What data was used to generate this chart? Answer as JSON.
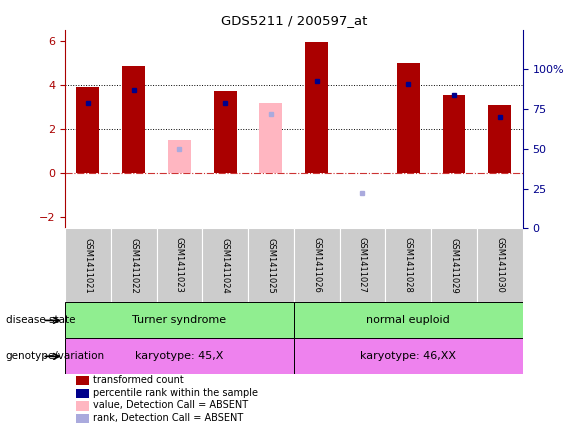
{
  "title": "GDS5211 / 200597_at",
  "samples": [
    "GSM1411021",
    "GSM1411022",
    "GSM1411023",
    "GSM1411024",
    "GSM1411025",
    "GSM1411026",
    "GSM1411027",
    "GSM1411028",
    "GSM1411029",
    "GSM1411030"
  ],
  "transformed_count": [
    3.9,
    4.85,
    null,
    3.7,
    null,
    5.95,
    null,
    5.0,
    3.55,
    3.1
  ],
  "transformed_count_absent": [
    null,
    null,
    1.5,
    null,
    3.2,
    null,
    null,
    null,
    null,
    null
  ],
  "percentile_rank": [
    79,
    87,
    null,
    79,
    null,
    93,
    null,
    91,
    84,
    70
  ],
  "percentile_rank_absent": [
    null,
    null,
    50,
    null,
    72,
    null,
    22,
    null,
    null,
    null
  ],
  "ylim_left": [
    -2.5,
    6.5
  ],
  "ylim_right": [
    0,
    125
  ],
  "yticks_left": [
    -2,
    0,
    2,
    4,
    6
  ],
  "yticks_right": [
    0,
    25,
    50,
    75,
    100
  ],
  "ytick_labels_right": [
    "0",
    "25",
    "50",
    "75",
    "100%"
  ],
  "bar_color_present": "#aa0000",
  "bar_color_absent": "#ffb6c1",
  "dot_color_present": "#00008b",
  "dot_color_absent": "#aaaadd",
  "legend_items": [
    {
      "label": "transformed count",
      "color": "#aa0000"
    },
    {
      "label": "percentile rank within the sample",
      "color": "#00008b"
    },
    {
      "label": "value, Detection Call = ABSENT",
      "color": "#ffb6c1"
    },
    {
      "label": "rank, Detection Call = ABSENT",
      "color": "#aaaadd"
    }
  ],
  "disease_labels": [
    "Turner syndrome",
    "normal euploid"
  ],
  "disease_color": "#90ee90",
  "genotype_labels": [
    "karyotype: 45,X",
    "karyotype: 46,XX"
  ],
  "genotype_color": "#ee82ee",
  "left_label1": "disease state",
  "left_label2": "genotype/variation"
}
